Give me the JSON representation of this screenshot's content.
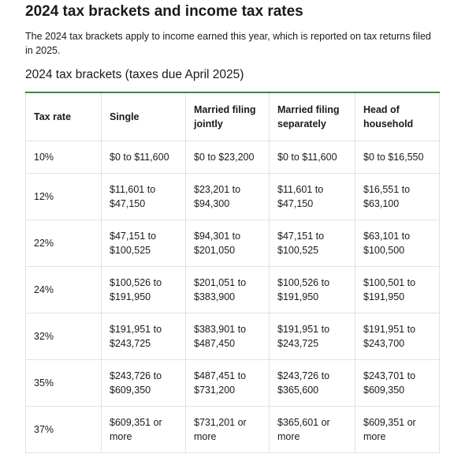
{
  "header": {
    "title": "2024 tax brackets and income tax rates",
    "intro": "The 2024 tax brackets apply to income earned this year, which is reported on tax returns filed in 2025."
  },
  "table": {
    "caption": "2024 tax brackets (taxes due April 2025)",
    "columns": [
      "Tax rate",
      "Single",
      "Married filing jointly",
      "Married filing separately",
      "Head of household"
    ],
    "rows": [
      [
        "10%",
        "$0 to $11,600",
        "$0 to $23,200",
        "$0 to $11,600",
        "$0 to $16,550"
      ],
      [
        "12%",
        "$11,601 to $47,150",
        "$23,201 to $94,300",
        "$11,601 to $47,150",
        "$16,551 to $63,100"
      ],
      [
        "22%",
        "$47,151 to $100,525",
        "$94,301 to $201,050",
        "$47,151 to $100,525",
        "$63,101 to $100,500"
      ],
      [
        "24%",
        "$100,526 to $191,950",
        "$201,051 to $383,900",
        "$100,526 to $191,950",
        "$100,501 to $191,950"
      ],
      [
        "32%",
        "$191,951 to $243,725",
        "$383,901 to $487,450",
        "$191,951 to $243,725",
        "$191,951 to $243,700"
      ],
      [
        "35%",
        "$243,726 to $609,350",
        "$487,451 to $731,200",
        "$243,726 to $365,600",
        "$243,701 to $609,350"
      ],
      [
        "37%",
        "$609,351 or more",
        "$731,201 or more",
        "$365,601 or more",
        "$609,351 or more"
      ]
    ]
  }
}
